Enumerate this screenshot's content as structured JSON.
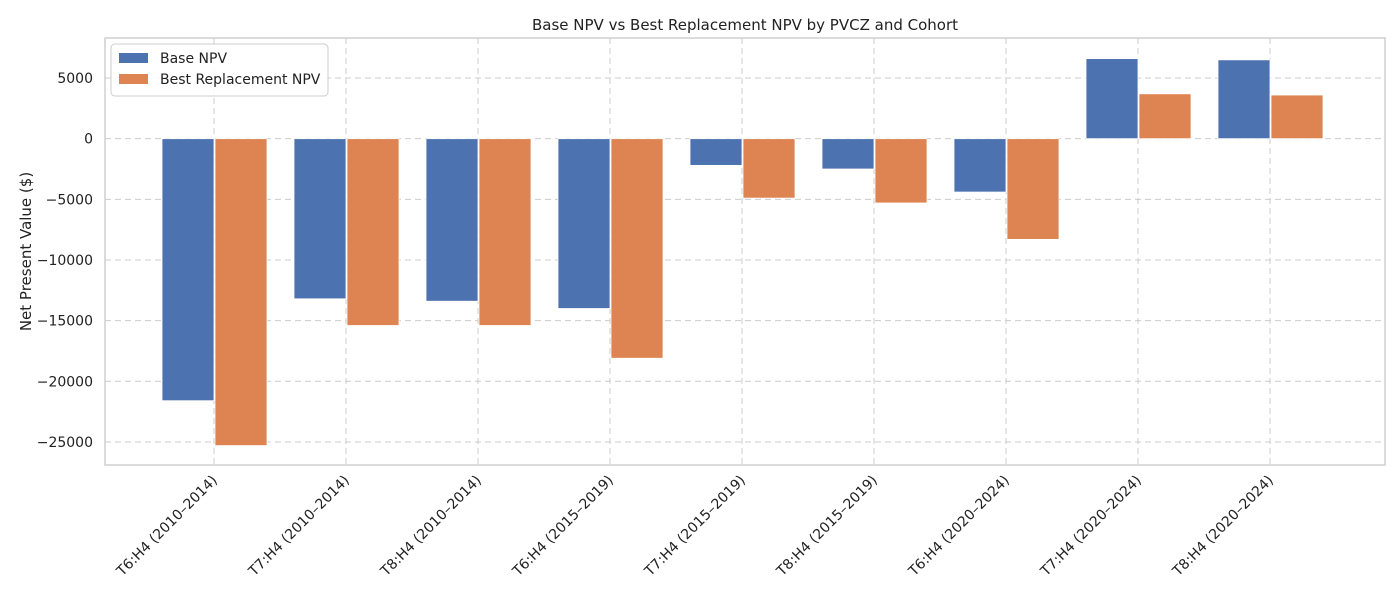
{
  "chart_data": {
    "type": "bar",
    "title": "Base NPV vs Best Replacement NPV by PVCZ and Cohort",
    "xlabel": "",
    "ylabel": "Net Present Value ($)",
    "ylim": [
      -26900,
      8300
    ],
    "yticks": [
      -25000,
      -20000,
      -15000,
      -10000,
      -5000,
      0,
      5000
    ],
    "grid": true,
    "legend_position": "top-left",
    "categories": [
      "T6:H4 (2010–2014)",
      "T7:H4 (2010–2014)",
      "T8:H4 (2010–2014)",
      "T6:H4 (2015–2019)",
      "T7:H4 (2015–2019)",
      "T8:H4 (2015–2019)",
      "T6:H4 (2020–2024)",
      "T7:H4 (2020–2024)",
      "T8:H4 (2020–2024)"
    ],
    "series": [
      {
        "name": "Base NPV",
        "color": "#4c72b0",
        "values": [
          -21600,
          -13200,
          -13400,
          -14000,
          -2200,
          -2500,
          -4400,
          6600,
          6500
        ]
      },
      {
        "name": "Best Replacement NPV",
        "color": "#dd8452",
        "values": [
          -25300,
          -15400,
          -15400,
          -18100,
          -4900,
          -5300,
          -8300,
          3700,
          3600
        ]
      }
    ]
  }
}
